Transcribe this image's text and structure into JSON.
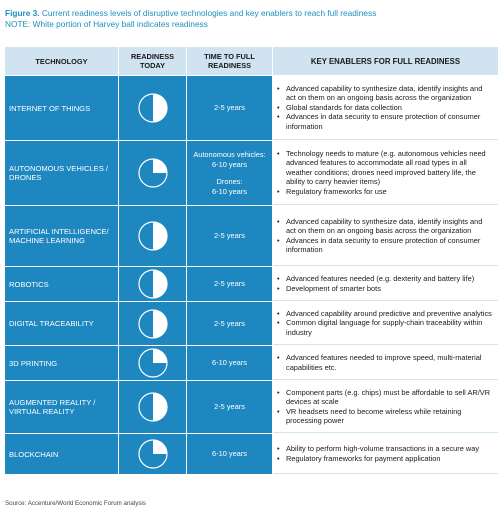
{
  "caption": {
    "figure_label": "Figure 3.",
    "title": "Current readiness levels of disruptive technologies and key enablers to reach full readiness",
    "note": "NOTE: White portion of Harvey ball indicates readiness"
  },
  "headers": {
    "technology": "TECHNOLOGY",
    "readiness_line1": "READINESS",
    "readiness_line2": "TODAY",
    "time_line1": "TIME TO FULL",
    "time_line2": "READINESS",
    "enablers": "KEY ENABLERS FOR FULL READINESS"
  },
  "colors": {
    "row_blue": "#1e87c0",
    "header_light_blue": "#cfe3f1",
    "caption_blue": "#1f8fc4",
    "ball_fill": "#ffffff"
  },
  "rows": [
    {
      "technology": "INTERNET OF THINGS",
      "readiness_fraction": 0.5,
      "time": [
        "2-5 years"
      ],
      "enablers": [
        "Advanced capability to synthesize data, identify insights and act on them on an ongoing basis across the organization",
        "Global standards for data collection",
        "Advances in data security to ensure protection of consumer information"
      ]
    },
    {
      "technology": "AUTONOMOUS VEHICLES / DRONES",
      "readiness_fraction": 0.25,
      "time": [
        "Autonomous vehicles:",
        "6-10 years",
        "",
        "Drones:",
        "6-10 years"
      ],
      "enablers": [
        "Technology needs to mature (e.g. autonomous vehicles need advanced features to accommodate all road types in all weather conditions; drones need improved battery life, the ability to carry heavier items)",
        "Regulatory frameworks for use"
      ]
    },
    {
      "technology": "ARTIFICIAL INTELLIGENCE/ MACHINE LEARNING",
      "readiness_fraction": 0.5,
      "time": [
        "2-5 years"
      ],
      "enablers": [
        "Advanced capability to synthesize data, identify insights and act on them on an ongoing basis across the organization",
        "Advances in data security to ensure protection of consumer information"
      ]
    },
    {
      "technology": "ROBOTICS",
      "readiness_fraction": 0.5,
      "time": [
        "2-5 years"
      ],
      "enablers": [
        "Advanced features needed (e.g. dexterity and battery life)",
        "Development of smarter bots"
      ]
    },
    {
      "technology": "DIGITAL TRACEABILITY",
      "readiness_fraction": 0.5,
      "time": [
        "2-5 years"
      ],
      "enablers": [
        "Advanced capability around predictive and preventive analytics",
        "Common digital language for supply-chain traceability within industry"
      ]
    },
    {
      "technology": "3D PRINTING",
      "readiness_fraction": 0.25,
      "time": [
        "6-10 years"
      ],
      "enablers": [
        "Advanced features needed to improve speed, multi-material capabilities etc."
      ]
    },
    {
      "technology": "AUGMENTED REALITY / VIRTUAL REALITY",
      "readiness_fraction": 0.5,
      "time": [
        "2-5 years"
      ],
      "enablers": [
        "Component parts (e.g. chips) must be affordable to sell AR/VR devices at scale",
        "VR headsets need to become wireless while retaining processing power"
      ]
    },
    {
      "technology": "BLOCKCHAIN",
      "readiness_fraction": 0.25,
      "time": [
        "6-10 years"
      ],
      "enablers": [
        "Ability to perform high-volume transactions in a secure way",
        "Regulatory frameworks for payment application"
      ]
    }
  ],
  "source": "Source: Accenture/World Economic Forum analysis"
}
